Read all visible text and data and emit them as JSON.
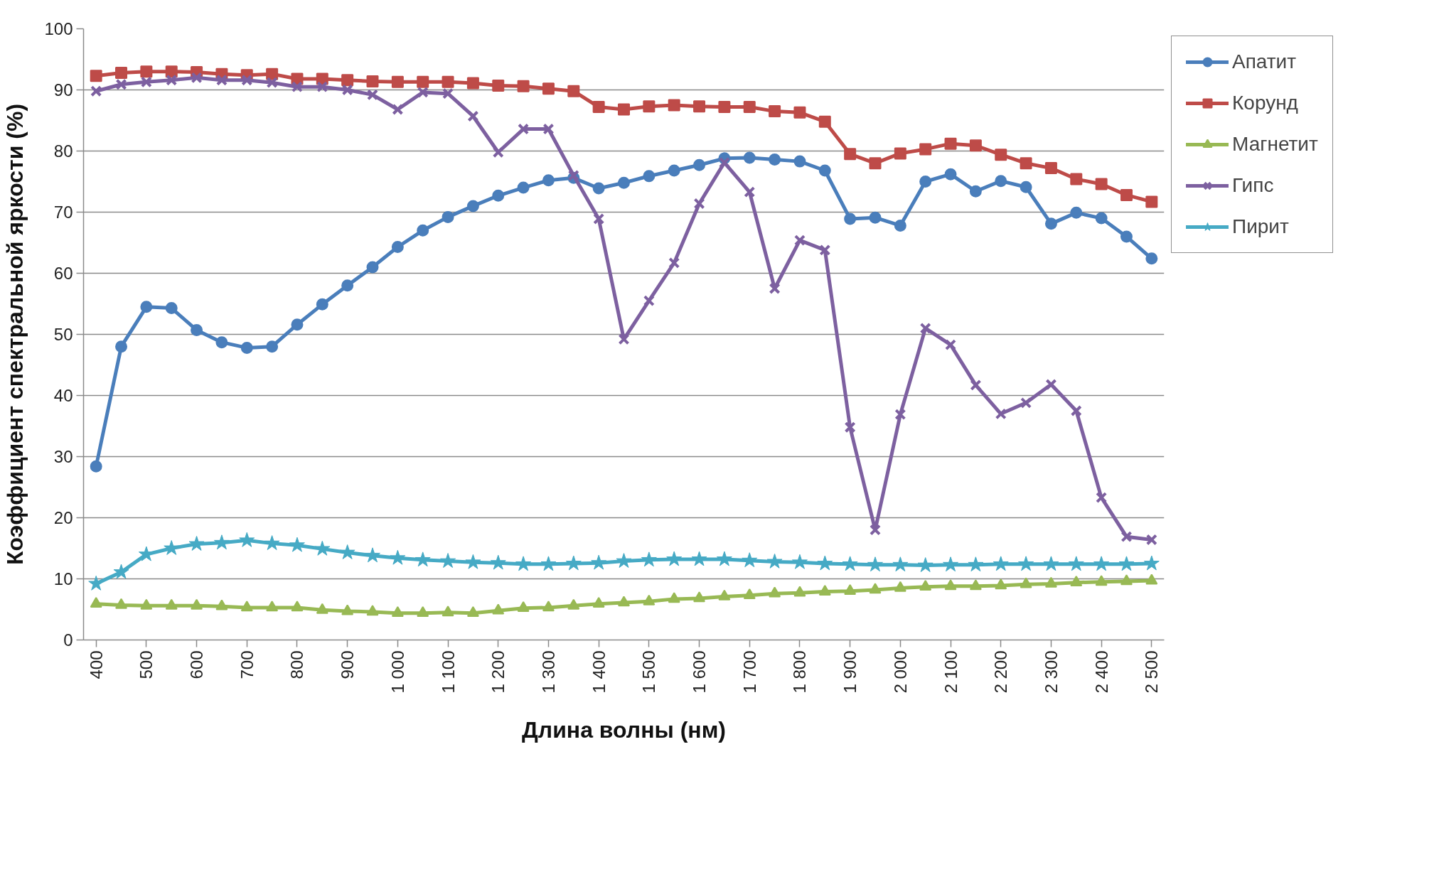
{
  "chart_data": {
    "type": "line",
    "xlabel": "Длина волны (нм)",
    "ylabel": "Коэффициент спектральной яркости (%)",
    "x": [
      400,
      450,
      500,
      550,
      600,
      650,
      700,
      750,
      800,
      850,
      900,
      950,
      1000,
      1050,
      1100,
      1150,
      1200,
      1250,
      1300,
      1350,
      1400,
      1450,
      1500,
      1550,
      1600,
      1650,
      1700,
      1750,
      1800,
      1850,
      1900,
      1950,
      2000,
      2050,
      2100,
      2150,
      2200,
      2250,
      2300,
      2350,
      2400,
      2450,
      2500
    ],
    "xlim": [
      375,
      2525
    ],
    "xticks": [
      400,
      500,
      600,
      700,
      800,
      900,
      {
        "value": 1000,
        "label": "1 000"
      },
      {
        "value": 1100,
        "label": "1 100"
      },
      {
        "value": 1200,
        "label": "1 200"
      },
      {
        "value": 1300,
        "label": "1 300"
      },
      {
        "value": 1400,
        "label": "1 400"
      },
      {
        "value": 1500,
        "label": "1 500"
      },
      {
        "value": 1600,
        "label": "1 600"
      },
      {
        "value": 1700,
        "label": "1 700"
      },
      {
        "value": 1800,
        "label": "1 800"
      },
      {
        "value": 1900,
        "label": "1 900"
      },
      {
        "value": 2000,
        "label": "2 000"
      },
      {
        "value": 2100,
        "label": "2 100"
      },
      {
        "value": 2200,
        "label": "2 200"
      },
      {
        "value": 2300,
        "label": "2 300"
      },
      {
        "value": 2400,
        "label": "2 400"
      },
      {
        "value": 2500,
        "label": "2 500"
      }
    ],
    "ylim": [
      0,
      100
    ],
    "yticks": [
      0,
      10,
      20,
      30,
      40,
      50,
      60,
      70,
      80,
      90,
      100
    ],
    "grid": "y",
    "legend": "right",
    "line_style": "solid",
    "series": [
      {
        "name": "Апатит",
        "color": "#4a7ebb",
        "marker": "circle",
        "values": [
          28.4,
          48,
          54.5,
          54.3,
          50.7,
          48.7,
          47.8,
          48,
          51.6,
          54.9,
          58,
          61,
          64.3,
          67,
          69.2,
          71,
          72.7,
          74,
          75.2,
          75.6,
          73.9,
          74.8,
          75.9,
          76.8,
          77.7,
          78.8,
          78.9,
          78.6,
          78.3,
          76.8,
          68.9,
          69.1,
          67.8,
          75,
          76.2,
          73.4,
          75.1,
          74.1,
          68.1,
          69.9,
          69,
          66,
          62.4
        ]
      },
      {
        "name": "Корунд",
        "color": "#be4b48",
        "marker": "square",
        "values": [
          92.3,
          92.8,
          93,
          93,
          92.9,
          92.6,
          92.4,
          92.6,
          91.8,
          91.8,
          91.6,
          91.4,
          91.3,
          91.3,
          91.3,
          91.1,
          90.7,
          90.6,
          90.2,
          89.8,
          87.2,
          86.8,
          87.3,
          87.5,
          87.3,
          87.2,
          87.2,
          86.5,
          86.3,
          84.8,
          79.5,
          78,
          79.6,
          80.3,
          81.2,
          80.9,
          79.4,
          78,
          77.2,
          75.4,
          74.6,
          72.8,
          71.7
        ]
      },
      {
        "name": "Магнетит",
        "color": "#98b954",
        "marker": "triangle",
        "values": [
          5.9,
          5.7,
          5.6,
          5.6,
          5.6,
          5.5,
          5.3,
          5.3,
          5.3,
          4.9,
          4.7,
          4.6,
          4.4,
          4.4,
          4.5,
          4.4,
          4.8,
          5.2,
          5.3,
          5.6,
          5.9,
          6.1,
          6.3,
          6.7,
          6.8,
          7.1,
          7.3,
          7.6,
          7.7,
          7.9,
          8,
          8.2,
          8.5,
          8.7,
          8.8,
          8.8,
          8.9,
          9.1,
          9.2,
          9.4,
          9.5,
          9.6,
          9.7
        ]
      },
      {
        "name": "Гипс",
        "color": "#7d60a0",
        "marker": "cross",
        "values": [
          89.8,
          90.9,
          91.3,
          91.6,
          92,
          91.6,
          91.6,
          91.2,
          90.5,
          90.5,
          90,
          89.2,
          86.8,
          89.6,
          89.4,
          85.7,
          79.8,
          83.6,
          83.6,
          76,
          68.9,
          49.2,
          55.5,
          61.7,
          71.4,
          78.1,
          73.3,
          57.5,
          65.4,
          63.8,
          34.8,
          18,
          36.9,
          51,
          48.3,
          41.7,
          37,
          38.8,
          41.8,
          37.5,
          23.3,
          16.9,
          16.4
        ]
      },
      {
        "name": "Пирит",
        "color": "#46aac5",
        "marker": "star",
        "values": [
          9.2,
          11.1,
          14,
          15,
          15.7,
          15.9,
          16.3,
          15.8,
          15.5,
          14.9,
          14.3,
          13.8,
          13.4,
          13.1,
          12.9,
          12.7,
          12.6,
          12.4,
          12.4,
          12.5,
          12.6,
          12.9,
          13.1,
          13.2,
          13.2,
          13.2,
          13,
          12.8,
          12.7,
          12.5,
          12.4,
          12.3,
          12.3,
          12.2,
          12.3,
          12.3,
          12.4,
          12.4,
          12.4,
          12.4,
          12.4,
          12.4,
          12.5
        ]
      }
    ]
  }
}
